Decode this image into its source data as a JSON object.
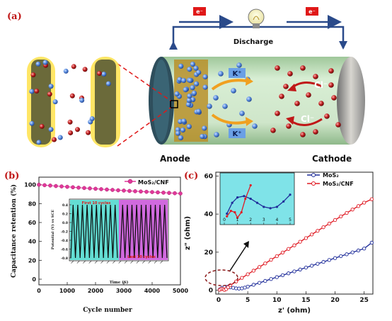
{
  "panel_a": {
    "label": "(a)",
    "electron_left": "e⁻",
    "electron_right": "e⁻",
    "discharge": "Discharge",
    "anode": "Anode",
    "cathode": "Cathode",
    "ions": {
      "k1": "K⁺",
      "k2": "K⁺",
      "cl1": "Cl⁻",
      "cl2": "Cl⁻"
    },
    "colors": {
      "tube": "#cfe7cb",
      "anode_gold": "#c9a02a",
      "k_ion": "#4f7fd6",
      "cl_ion": "#b01818",
      "arrow_k": "#f0a020",
      "arrow_cl": "#c01818",
      "wire": "#2a4a8a"
    }
  },
  "chart_data": [
    {
      "panel": "(b)",
      "type": "scatter",
      "xlabel": "Cycle number",
      "ylabel": "Capacitance retention (%)",
      "xlim": [
        0,
        5000
      ],
      "ylim": [
        0,
        100
      ],
      "xticks": [
        "0",
        "1000",
        "2000",
        "3000",
        "4000",
        "5000"
      ],
      "yticks": [
        "0",
        "20",
        "40",
        "60",
        "80",
        "100"
      ],
      "legend_position": "top-right",
      "series": [
        {
          "name": "MoS₂/CNF",
          "color": "#e0389a",
          "x": [
            0,
            200,
            400,
            600,
            800,
            1000,
            1200,
            1400,
            1600,
            1800,
            2000,
            2200,
            2400,
            2600,
            2800,
            3000,
            3200,
            3400,
            3600,
            3800,
            4000,
            4200,
            4400,
            4600,
            4800,
            5000
          ],
          "y": [
            100,
            99.5,
            99.1,
            98.6,
            98.2,
            97.8,
            97.3,
            96.9,
            96.5,
            96.1,
            95.7,
            95.3,
            94.9,
            94.5,
            94.1,
            93.8,
            93.4,
            93.1,
            92.8,
            92.5,
            92.2,
            91.9,
            91.6,
            91.3,
            91.0,
            90.7
          ]
        }
      ],
      "inset": {
        "type": "line",
        "ylabel": "Potential (V) vs SCE",
        "xlabel": "Time (S)",
        "yticks": [
          "-0.8",
          "-0.6",
          "-0.4",
          "-0.2",
          "0.0",
          "0.2",
          "0.4"
        ],
        "annot_first": "First 10 cycles",
        "annot_last": "Last 10 cycles",
        "first_color": "#2fd1c4",
        "last_color": "#c84fd8",
        "cycles_each": 10,
        "vrange": [
          -0.8,
          0.4
        ]
      }
    },
    {
      "panel": "(c)",
      "type": "scatter",
      "xlabel": "z' (ohm)",
      "ylabel": "z\" (ohm)",
      "xlim": [
        0,
        26.5
      ],
      "ylim": [
        -2,
        62
      ],
      "xticks": [
        "0",
        "5",
        "10",
        "15",
        "20",
        "25"
      ],
      "yticks": [
        "0",
        "20",
        "40",
        "60"
      ],
      "legend_position": "top-right",
      "series": [
        {
          "name": "MoS₂",
          "color": "#1f2d9a",
          "x": [
            0.2,
            0.6,
            1.0,
            1.5,
            2.0,
            2.5,
            3.0,
            3.5,
            4.0,
            4.5,
            5.0,
            6,
            7,
            8,
            9,
            10,
            11,
            12,
            13,
            14,
            15,
            16,
            17,
            18,
            19,
            20,
            21,
            22,
            23,
            24,
            25,
            26.3
          ],
          "y": [
            0.5,
            1.3,
            1.7,
            1.8,
            1.6,
            1.3,
            1.0,
            0.9,
            1.0,
            1.4,
            1.9,
            2.9,
            3.9,
            4.9,
            5.9,
            6.9,
            7.9,
            8.9,
            9.9,
            10.9,
            11.9,
            12.9,
            13.9,
            14.9,
            15.9,
            16.9,
            17.9,
            18.9,
            19.9,
            20.9,
            21.9,
            25.0
          ]
        },
        {
          "name": "MoS₂/CNF",
          "color": "#e01b24",
          "x": [
            0.2,
            0.5,
            0.8,
            1.0,
            1.3,
            1.6,
            2,
            3,
            4,
            5,
            6,
            7,
            8,
            9,
            10,
            11,
            12,
            13,
            14,
            15,
            16,
            17,
            18,
            19,
            20,
            21,
            22,
            23,
            24,
            25,
            26.3
          ],
          "y": [
            0.3,
            0.7,
            0.6,
            0.2,
            0.6,
            1.6,
            2.6,
            4.6,
            6.5,
            8.4,
            10.3,
            12.2,
            14.1,
            16.0,
            17.9,
            19.8,
            21.7,
            23.6,
            25.5,
            27.4,
            29.3,
            31.2,
            33.1,
            35.0,
            36.9,
            38.8,
            40.6,
            42.4,
            44.2,
            46.0,
            47.8
          ]
        }
      ],
      "inset": {
        "xticks": [
          "0",
          "1",
          "2",
          "3",
          "4",
          "5"
        ],
        "xlim": [
          0,
          5
        ],
        "ylim": [
          0,
          3.2
        ],
        "bg": "#7fe3e8"
      }
    }
  ]
}
